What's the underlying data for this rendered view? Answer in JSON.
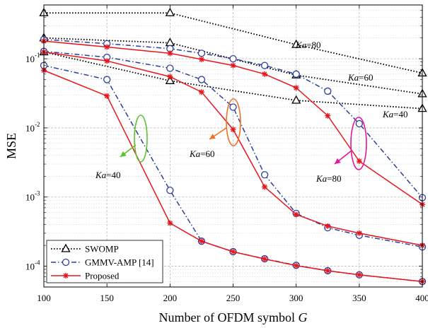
{
  "chart_data": {
    "type": "line",
    "xlabel": "Number of OFDM symbol",
    "xlabel_var": "G",
    "ylabel": "MSE",
    "x": [
      100,
      150,
      200,
      225,
      250,
      275,
      300,
      325,
      350,
      400
    ],
    "xticks": [
      100,
      150,
      200,
      250,
      300,
      350,
      400
    ],
    "xlim": [
      100,
      400
    ],
    "ylim": [
      5e-05,
      0.6
    ],
    "y_scale": "log",
    "yticks": [
      {
        "base": "10",
        "exp": "-4",
        "value": 0.0001
      },
      {
        "base": "10",
        "exp": "-3",
        "value": 0.001
      },
      {
        "base": "10",
        "exp": "-2",
        "value": 0.01
      },
      {
        "base": "10",
        "exp": "-1",
        "value": 0.1
      }
    ],
    "grid": true,
    "legend_position": "bottom-left",
    "legend": [
      {
        "label": "SWOMP",
        "style": "dotted",
        "marker": "triangle",
        "color": "#000000"
      },
      {
        "label": "GMMV-AMP [14]",
        "style": "dashdot",
        "marker": "circle",
        "color": "#2b3f9e"
      },
      {
        "label": "Proposed",
        "style": "solid",
        "marker": "star",
        "color": "#e8161c"
      }
    ],
    "series": [
      {
        "method": "SWOMP",
        "ka": 80,
        "color": "#000000",
        "style": "dotted",
        "marker": "triangle",
        "x": [
          100,
          200,
          300,
          400
        ],
        "y": [
          0.46,
          0.46,
          0.16,
          0.062
        ]
      },
      {
        "method": "SWOMP",
        "ka": 60,
        "color": "#000000",
        "style": "dotted",
        "marker": "triangle",
        "x": [
          100,
          200,
          300,
          400
        ],
        "y": [
          0.2,
          0.17,
          0.058,
          0.031
        ]
      },
      {
        "method": "SWOMP",
        "ka": 40,
        "color": "#000000",
        "style": "dotted",
        "marker": "triangle",
        "x": [
          100,
          200,
          300,
          400
        ],
        "y": [
          0.125,
          0.048,
          0.025,
          0.019
        ]
      },
      {
        "method": "GMMV-AMP",
        "ka": 80,
        "color": "#2b3f9e",
        "style": "dashdot",
        "marker": "circle",
        "x": [
          100,
          150,
          200,
          225,
          250,
          275,
          300,
          325,
          350,
          400
        ],
        "y": [
          0.19,
          0.165,
          0.14,
          0.12,
          0.1,
          0.08,
          0.06,
          0.034,
          0.0115,
          0.00098
        ]
      },
      {
        "method": "GMMV-AMP",
        "ka": 60,
        "color": "#2b3f9e",
        "style": "dashdot",
        "marker": "circle",
        "x": [
          100,
          150,
          200,
          225,
          250,
          275,
          300,
          325,
          350,
          400
        ],
        "y": [
          0.128,
          0.105,
          0.073,
          0.05,
          0.02,
          0.0021,
          0.00058,
          0.00036,
          0.00028,
          0.00019
        ]
      },
      {
        "method": "GMMV-AMP",
        "ka": 40,
        "color": "#2b3f9e",
        "style": "dashdot",
        "marker": "circle",
        "x": [
          100,
          150,
          200,
          225,
          250,
          275,
          300,
          325,
          350,
          400
        ],
        "y": [
          0.08,
          0.05,
          0.00125,
          0.00023,
          0.000162,
          0.000128,
          0.000103,
          8.6e-05,
          7.5e-05,
          6e-05
        ]
      },
      {
        "method": "Proposed",
        "ka": 80,
        "color": "#e8161c",
        "style": "solid",
        "marker": "star",
        "x": [
          100,
          150,
          200,
          225,
          250,
          275,
          300,
          325,
          350,
          400
        ],
        "y": [
          0.18,
          0.148,
          0.12,
          0.098,
          0.08,
          0.06,
          0.038,
          0.015,
          0.0033,
          0.00078
        ]
      },
      {
        "method": "Proposed",
        "ka": 60,
        "color": "#e8161c",
        "style": "solid",
        "marker": "star",
        "x": [
          100,
          150,
          200,
          225,
          250,
          275,
          300,
          325,
          350,
          400
        ],
        "y": [
          0.125,
          0.093,
          0.055,
          0.033,
          0.0095,
          0.0014,
          0.00056,
          0.00038,
          0.0003,
          0.0002
        ]
      },
      {
        "method": "Proposed",
        "ka": 40,
        "color": "#e8161c",
        "style": "solid",
        "marker": "star",
        "x": [
          100,
          150,
          200,
          225,
          250,
          275,
          300,
          325,
          350,
          400
        ],
        "y": [
          0.068,
          0.029,
          0.00042,
          0.00023,
          0.000162,
          0.000127,
          0.000102,
          8.6e-05,
          7.5e-05,
          6e-05
        ]
      }
    ],
    "annotations": [
      {
        "text": "Ka=80",
        "italic": "Ka",
        "rest": "=80",
        "color": "#000000"
      },
      {
        "text": "Ka=60",
        "italic": "Ka",
        "rest": "=60",
        "color": "#000000"
      },
      {
        "text": "Ka=40",
        "italic": "Ka",
        "rest": "=40",
        "color": "#000000"
      },
      {
        "text": "Ka=40",
        "italic": "Ka",
        "rest": "=40",
        "color": "#5cc02f"
      },
      {
        "text": "Ka=60",
        "italic": "Ka",
        "rest": "=60",
        "color": "#f07324"
      },
      {
        "text": "Ka=80",
        "italic": "Ka",
        "rest": "=80",
        "color": "#e0199a"
      }
    ]
  }
}
